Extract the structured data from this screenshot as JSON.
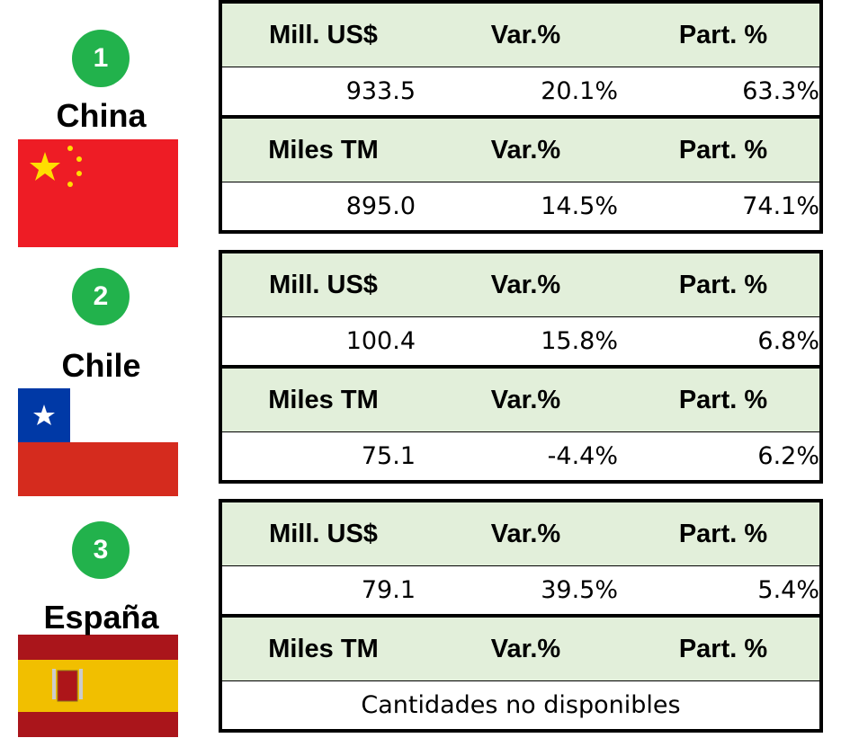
{
  "countries": [
    {
      "rank": "1",
      "name": "China",
      "value_table": {
        "headers": [
          "Mill. US$",
          "Var.%",
          "Part. %"
        ],
        "values": [
          "933.5",
          "20.1%",
          "63.3%"
        ]
      },
      "volume_table": {
        "headers": [
          "Miles TM",
          "Var.%",
          "Part. %"
        ],
        "values": [
          "895.0",
          "14.5%",
          "74.1%"
        ]
      }
    },
    {
      "rank": "2",
      "name": "Chile",
      "value_table": {
        "headers": [
          "Mill. US$",
          "Var.%",
          "Part. %"
        ],
        "values": [
          "100.4",
          "15.8%",
          "6.8%"
        ]
      },
      "volume_table": {
        "headers": [
          "Miles TM",
          "Var.%",
          "Part. %"
        ],
        "values": [
          "75.1",
          "-4.4%",
          "6.2%"
        ]
      }
    },
    {
      "rank": "3",
      "name": "España",
      "value_table": {
        "headers": [
          "Mill. US$",
          "Var.%",
          "Part. %"
        ],
        "values": [
          "79.1",
          "39.5%",
          "5.4%"
        ]
      },
      "volume_table": {
        "headers": [
          "Miles TM",
          "Var.%",
          "Part. %"
        ],
        "note": "Cantidades no disponibles"
      }
    }
  ]
}
